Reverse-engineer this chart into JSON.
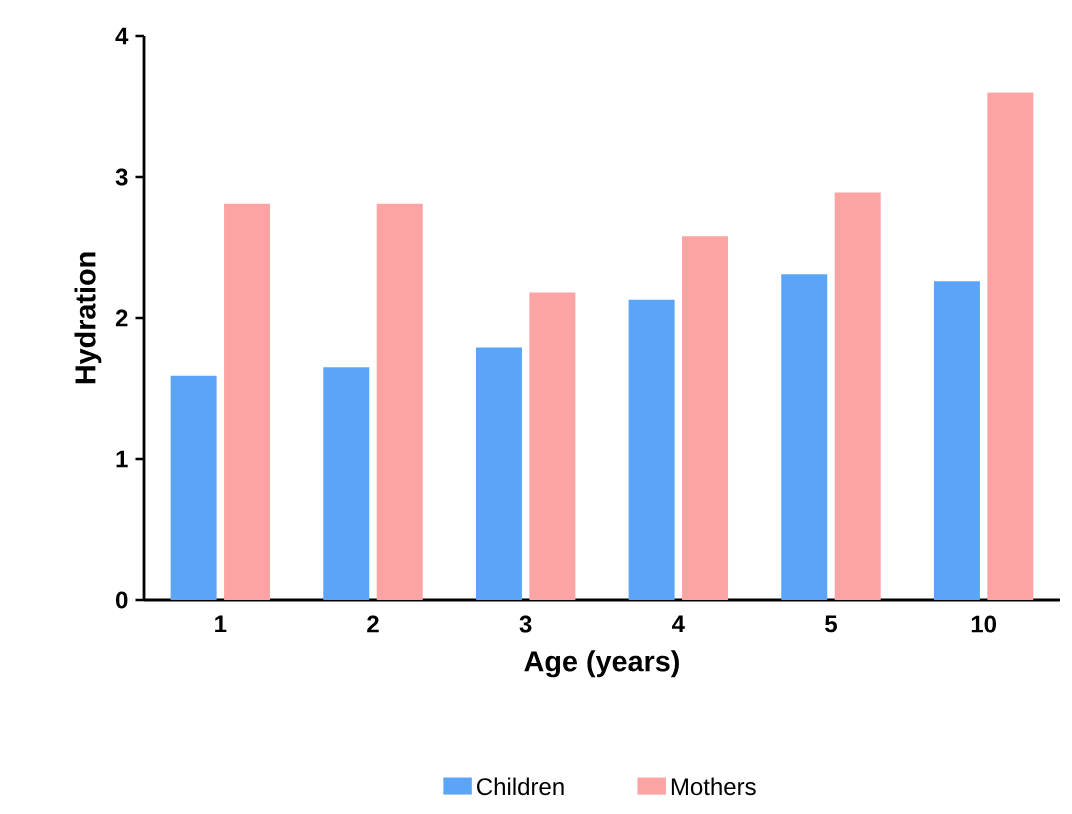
{
  "chart_data": {
    "type": "bar",
    "xlabel": "Age (years)",
    "ylabel": "Hydration",
    "categories": [
      "1",
      "2",
      "3",
      "4",
      "5",
      "10"
    ],
    "series": [
      {
        "name": "Children",
        "color": "#5ba4f7",
        "values": [
          1.59,
          1.65,
          1.79,
          2.13,
          2.31,
          2.26
        ]
      },
      {
        "name": "Mothers",
        "color": "#fca3a3",
        "values": [
          2.81,
          2.81,
          2.18,
          2.58,
          2.89,
          3.6
        ]
      }
    ],
    "ylim": [
      0,
      4
    ],
    "yticks": [
      0,
      1,
      2,
      3,
      4
    ],
    "grid": false,
    "legend": "bottom"
  }
}
